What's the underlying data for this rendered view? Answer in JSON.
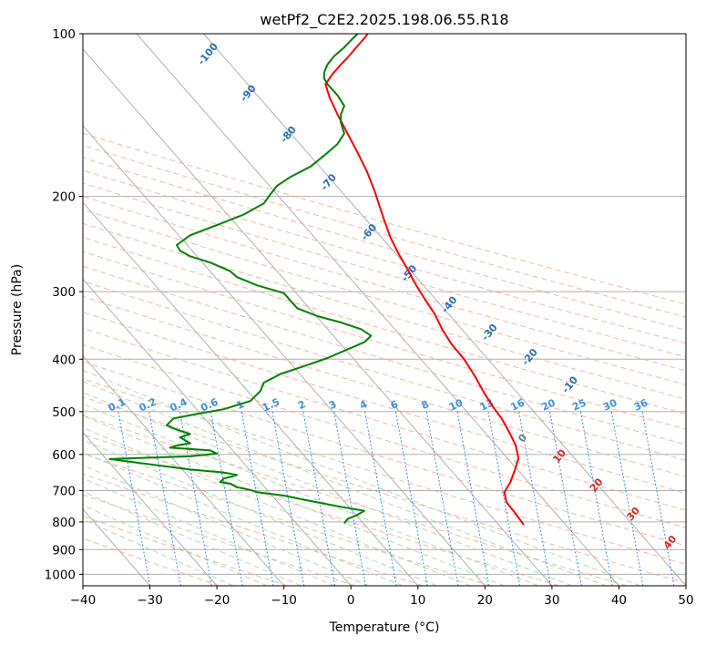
{
  "chart_data": {
    "type": "line",
    "title": "wetPf2_C2E2.2025.198.06.55.R18",
    "xlabel": "Temperature (°C)",
    "ylabel": "Pressure (hPa)",
    "xlim": [
      -40,
      50
    ],
    "ylim": [
      1050,
      100
    ],
    "y_scale": "log",
    "grid": true,
    "x_ticks": [
      "−40",
      "−30",
      "−20",
      "−10",
      "0",
      "10",
      "20",
      "30",
      "40",
      "50"
    ],
    "y_ticks": [
      "100",
      "200",
      "300",
      "400",
      "500",
      "600",
      "700",
      "800",
      "900",
      "1000"
    ],
    "dry_adiabat_labels": [
      "-100",
      "-90",
      "-80",
      "-70",
      "-60",
      "-50",
      "-40",
      "-30",
      "-20",
      "-10",
      "0",
      "10",
      "20",
      "30",
      "40"
    ],
    "mixing_ratio_labels": [
      "0.1",
      "0.2",
      "0.4",
      "0.6",
      "1",
      "1.5",
      "2",
      "3",
      "4",
      "6",
      "8",
      "10",
      "13",
      "16",
      "20",
      "25",
      "30",
      "36"
    ],
    "series": [
      {
        "color": "#ff0000",
        "points": [
          [
            25.8,
            810
          ],
          [
            24.5,
            770
          ],
          [
            23.2,
            735
          ],
          [
            22.9,
            705
          ],
          [
            23.8,
            675
          ],
          [
            24.5,
            640
          ],
          [
            25.0,
            610
          ],
          [
            24.6,
            578
          ],
          [
            23.6,
            545
          ],
          [
            22.5,
            515
          ],
          [
            21.2,
            490
          ],
          [
            19.8,
            460
          ],
          [
            18.5,
            430
          ],
          [
            16.9,
            400
          ],
          [
            15.0,
            375
          ],
          [
            13.6,
            352
          ],
          [
            12.5,
            330
          ],
          [
            10.9,
            308
          ],
          [
            9.6,
            290
          ],
          [
            8.4,
            272
          ],
          [
            7.1,
            255
          ],
          [
            5.9,
            238
          ],
          [
            5.0,
            222
          ],
          [
            4.2,
            207
          ],
          [
            3.5,
            195
          ],
          [
            2.4,
            180
          ],
          [
            1.0,
            166
          ],
          [
            -0.5,
            153
          ],
          [
            -2.0,
            141
          ],
          [
            -3.2,
            131
          ],
          [
            -3.8,
            124
          ],
          [
            -2.8,
            119
          ],
          [
            -1.5,
            114
          ],
          [
            -0.3,
            110
          ],
          [
            0.8,
            106
          ],
          [
            2.0,
            102
          ],
          [
            2.5,
            100
          ]
        ]
      },
      {
        "color": "#008000",
        "points": [
          [
            -1.0,
            805
          ],
          [
            -0.5,
            790
          ],
          [
            0.8,
            778
          ],
          [
            2.0,
            763
          ],
          [
            -1.5,
            750
          ],
          [
            -6.0,
            732
          ],
          [
            -10.0,
            715
          ],
          [
            -14.0,
            705
          ],
          [
            -15.0,
            698
          ],
          [
            -17.0,
            690
          ],
          [
            -18.0,
            680
          ],
          [
            -19.5,
            675
          ],
          [
            -19.0,
            665
          ],
          [
            -17.0,
            655
          ],
          [
            -19.0,
            648
          ],
          [
            -24.0,
            640
          ],
          [
            -36.0,
            612
          ],
          [
            -24.0,
            605
          ],
          [
            -20.0,
            598
          ],
          [
            -21.0,
            590
          ],
          [
            -27.0,
            583
          ],
          [
            -26.0,
            578
          ],
          [
            -24.0,
            572
          ],
          [
            -25.5,
            558
          ],
          [
            -24.0,
            550
          ],
          [
            -26.0,
            540
          ],
          [
            -27.5,
            530
          ],
          [
            -26.5,
            515
          ],
          [
            -23.0,
            505
          ],
          [
            -19.0,
            495
          ],
          [
            -15.0,
            478
          ],
          [
            -13.5,
            458
          ],
          [
            -13.0,
            442
          ],
          [
            -10.5,
            426
          ],
          [
            -7.0,
            412
          ],
          [
            -3.5,
            398
          ],
          [
            -1.0,
            386
          ],
          [
            2.0,
            372
          ],
          [
            3.0,
            362
          ],
          [
            1.5,
            352
          ],
          [
            -1.5,
            342
          ],
          [
            -5.0,
            333
          ],
          [
            -8.0,
            322
          ],
          [
            -9.0,
            312
          ],
          [
            -10.0,
            302
          ],
          [
            -14.0,
            292
          ],
          [
            -17.0,
            282
          ],
          [
            -18.0,
            275
          ],
          [
            -21.0,
            265
          ],
          [
            -24.0,
            258
          ],
          [
            -25.5,
            252
          ],
          [
            -26.0,
            246
          ],
          [
            -24.0,
            236
          ],
          [
            -20.0,
            226
          ],
          [
            -16.0,
            216
          ],
          [
            -13.0,
            206
          ],
          [
            -12.0,
            198
          ],
          [
            -11.0,
            191
          ],
          [
            -9.0,
            184
          ],
          [
            -6.0,
            176
          ],
          [
            -4.0,
            168
          ],
          [
            -2.0,
            160
          ],
          [
            -1.0,
            153
          ],
          [
            -1.5,
            146
          ],
          [
            -1.5,
            141
          ],
          [
            -1.0,
            136
          ],
          [
            -2.0,
            130
          ],
          [
            -3.5,
            124
          ],
          [
            -4.0,
            121
          ],
          [
            -4.0,
            118
          ],
          [
            -3.5,
            114
          ],
          [
            -2.5,
            110
          ],
          [
            -1.0,
            106
          ],
          [
            0.3,
            102
          ],
          [
            1.0,
            100
          ]
        ]
      }
    ]
  }
}
